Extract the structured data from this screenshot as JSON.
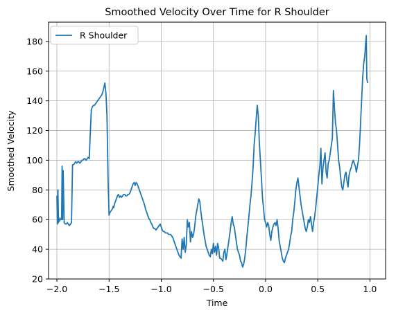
{
  "chart_data": {
    "type": "line",
    "title": "Smoothed Velocity Over Time for R Shoulder",
    "xlabel": "Time",
    "ylabel": "Smoothed Velocity",
    "xlim": [
      -2.08,
      1.15
    ],
    "ylim": [
      20,
      193
    ],
    "xticks": [
      -2.0,
      -1.5,
      -1.0,
      -0.5,
      0.0,
      0.5,
      1.0
    ],
    "xtick_labels": [
      "−2.0",
      "−1.5",
      "−1.0",
      "−0.5",
      "0.0",
      "0.5",
      "1.0"
    ],
    "yticks": [
      20,
      40,
      60,
      80,
      100,
      120,
      140,
      160,
      180
    ],
    "ytick_labels": [
      "20",
      "40",
      "60",
      "80",
      "100",
      "120",
      "140",
      "160",
      "180"
    ],
    "grid": true,
    "legend_position": "top-left",
    "colors": {
      "series": "#1f77b4",
      "grid": "#b0b0b0",
      "axis": "#000000",
      "legend_border": "#cccccc"
    },
    "series": [
      {
        "name": "R Shoulder",
        "x": [
          -2.0,
          -1.995,
          -1.99,
          -1.985,
          -1.98,
          -1.975,
          -1.97,
          -1.965,
          -1.96,
          -1.955,
          -1.95,
          -1.945,
          -1.94,
          -1.93,
          -1.92,
          -1.91,
          -1.9,
          -1.89,
          -1.88,
          -1.87,
          -1.86,
          -1.85,
          -1.84,
          -1.83,
          -1.82,
          -1.81,
          -1.8,
          -1.79,
          -1.78,
          -1.77,
          -1.76,
          -1.75,
          -1.74,
          -1.73,
          -1.72,
          -1.71,
          -1.7,
          -1.69,
          -1.68,
          -1.67,
          -1.66,
          -1.65,
          -1.64,
          -1.63,
          -1.62,
          -1.61,
          -1.6,
          -1.59,
          -1.58,
          -1.57,
          -1.56,
          -1.55,
          -1.54,
          -1.53,
          -1.52,
          -1.51,
          -1.5,
          -1.49,
          -1.48,
          -1.47,
          -1.46,
          -1.455,
          -1.45,
          -1.445,
          -1.44,
          -1.435,
          -1.43,
          -1.425,
          -1.42,
          -1.41,
          -1.4,
          -1.39,
          -1.38,
          -1.37,
          -1.36,
          -1.35,
          -1.34,
          -1.33,
          -1.32,
          -1.31,
          -1.3,
          -1.29,
          -1.28,
          -1.27,
          -1.26,
          -1.25,
          -1.24,
          -1.23,
          -1.22,
          -1.21,
          -1.2,
          -1.19,
          -1.18,
          -1.17,
          -1.16,
          -1.15,
          -1.14,
          -1.13,
          -1.12,
          -1.11,
          -1.1,
          -1.09,
          -1.08,
          -1.07,
          -1.06,
          -1.05,
          -1.04,
          -1.03,
          -1.02,
          -1.01,
          -1.0,
          -0.99,
          -0.98,
          -0.97,
          -0.96,
          -0.95,
          -0.94,
          -0.93,
          -0.92,
          -0.91,
          -0.9,
          -0.89,
          -0.88,
          -0.87,
          -0.86,
          -0.85,
          -0.84,
          -0.83,
          -0.82,
          -0.81,
          -0.8,
          -0.79,
          -0.78,
          -0.77,
          -0.76,
          -0.75,
          -0.74,
          -0.73,
          -0.72,
          -0.71,
          -0.7,
          -0.69,
          -0.68,
          -0.67,
          -0.66,
          -0.65,
          -0.64,
          -0.63,
          -0.62,
          -0.61,
          -0.6,
          -0.59,
          -0.58,
          -0.57,
          -0.56,
          -0.55,
          -0.54,
          -0.53,
          -0.52,
          -0.51,
          -0.5,
          -0.49,
          -0.48,
          -0.47,
          -0.46,
          -0.45,
          -0.44,
          -0.43,
          -0.42,
          -0.41,
          -0.4,
          -0.39,
          -0.38,
          -0.37,
          -0.36,
          -0.35,
          -0.34,
          -0.33,
          -0.32,
          -0.31,
          -0.3,
          -0.29,
          -0.28,
          -0.27,
          -0.26,
          -0.25,
          -0.24,
          -0.23,
          -0.22,
          -0.21,
          -0.2,
          -0.19,
          -0.18,
          -0.17,
          -0.16,
          -0.15,
          -0.14,
          -0.13,
          -0.12,
          -0.11,
          -0.1,
          -0.09,
          -0.08,
          -0.07,
          -0.06,
          -0.05,
          -0.04,
          -0.03,
          -0.02,
          -0.01,
          0.0,
          0.01,
          0.02,
          0.03,
          0.04,
          0.05,
          0.06,
          0.07,
          0.08,
          0.09,
          0.1,
          0.11,
          0.12,
          0.13,
          0.14,
          0.15,
          0.16,
          0.17,
          0.18,
          0.19,
          0.2,
          0.21,
          0.22,
          0.23,
          0.24,
          0.25,
          0.26,
          0.27,
          0.28,
          0.29,
          0.3,
          0.31,
          0.32,
          0.33,
          0.34,
          0.35,
          0.36,
          0.37,
          0.38,
          0.39,
          0.4,
          0.41,
          0.42,
          0.43,
          0.44,
          0.45,
          0.46,
          0.47,
          0.48,
          0.49,
          0.5,
          0.51,
          0.52,
          0.53,
          0.54,
          0.55,
          0.56,
          0.57,
          0.58,
          0.59,
          0.6,
          0.61,
          0.62,
          0.63,
          0.64,
          0.65,
          0.66,
          0.67,
          0.68,
          0.69,
          0.7,
          0.71,
          0.72,
          0.73,
          0.74,
          0.75,
          0.76,
          0.77,
          0.78,
          0.79,
          0.8,
          0.81,
          0.82,
          0.83,
          0.84,
          0.85,
          0.86,
          0.87,
          0.88,
          0.89,
          0.9,
          0.91,
          0.92,
          0.93,
          0.94,
          0.95,
          0.955,
          0.96,
          0.965,
          0.97,
          0.975,
          0.98
        ],
        "values": [
          76,
          57,
          80,
          58,
          61,
          59,
          60,
          60,
          61,
          60,
          96,
          60,
          93,
          58,
          57,
          57,
          58,
          57,
          56,
          57,
          58,
          97,
          97,
          98,
          99,
          98,
          99,
          99,
          98,
          99,
          100,
          100,
          101,
          101,
          100,
          101,
          102,
          101,
          118,
          134,
          136,
          137,
          137,
          138,
          139,
          140,
          141,
          142,
          143,
          144,
          146,
          149,
          152,
          145,
          130,
          88,
          63,
          65,
          66,
          67,
          69,
          68,
          70,
          71,
          72,
          73,
          74,
          75,
          76,
          77,
          75,
          76,
          75,
          76,
          77,
          77,
          76,
          76,
          77,
          77,
          78,
          80,
          82,
          84,
          85,
          83,
          85,
          84,
          82,
          80,
          78,
          76,
          74,
          72,
          70,
          67,
          65,
          63,
          61,
          60,
          58,
          57,
          55,
          54,
          54,
          53,
          54,
          55,
          56,
          57,
          55,
          53,
          52,
          52,
          51,
          51,
          51,
          50,
          50,
          50,
          49,
          48,
          46,
          44,
          42,
          40,
          38,
          36,
          35,
          34,
          47,
          40,
          48,
          38,
          43,
          60,
          55,
          58,
          45,
          52,
          48,
          50,
          55,
          62,
          66,
          70,
          74,
          72,
          65,
          60,
          55,
          50,
          46,
          42,
          40,
          38,
          36,
          35,
          40,
          37,
          44,
          38,
          42,
          36,
          44,
          41,
          34,
          34,
          33,
          32,
          38,
          40,
          33,
          37,
          42,
          47,
          52,
          58,
          62,
          57,
          55,
          50,
          45,
          40,
          38,
          36,
          32,
          31,
          28,
          30,
          34,
          40,
          48,
          55,
          62,
          70,
          76,
          85,
          95,
          110,
          118,
          128,
          137,
          130,
          112,
          100,
          88,
          75,
          68,
          60,
          58,
          55,
          58,
          56,
          50,
          46,
          52,
          55,
          57,
          58,
          56,
          60,
          54,
          46,
          42,
          38,
          34,
          32,
          31,
          34,
          36,
          38,
          40,
          44,
          49,
          52,
          60,
          65,
          72,
          80,
          85,
          88,
          82,
          76,
          70,
          66,
          62,
          58,
          54,
          52,
          55,
          60,
          58,
          62,
          57,
          52,
          58,
          62,
          68,
          75,
          82,
          90,
          96,
          108,
          84,
          95,
          100,
          105,
          92,
          88,
          98,
          100,
          105,
          110,
          115,
          147,
          135,
          125,
          120,
          110,
          100,
          95,
          88,
          82,
          80,
          85,
          90,
          92,
          86,
          82,
          90,
          93,
          95,
          98,
          100,
          98,
          96,
          92,
          96,
          100,
          110,
          125,
          140,
          155,
          165,
          170,
          175,
          180,
          184,
          155,
          153,
          152
        ]
      }
    ]
  }
}
